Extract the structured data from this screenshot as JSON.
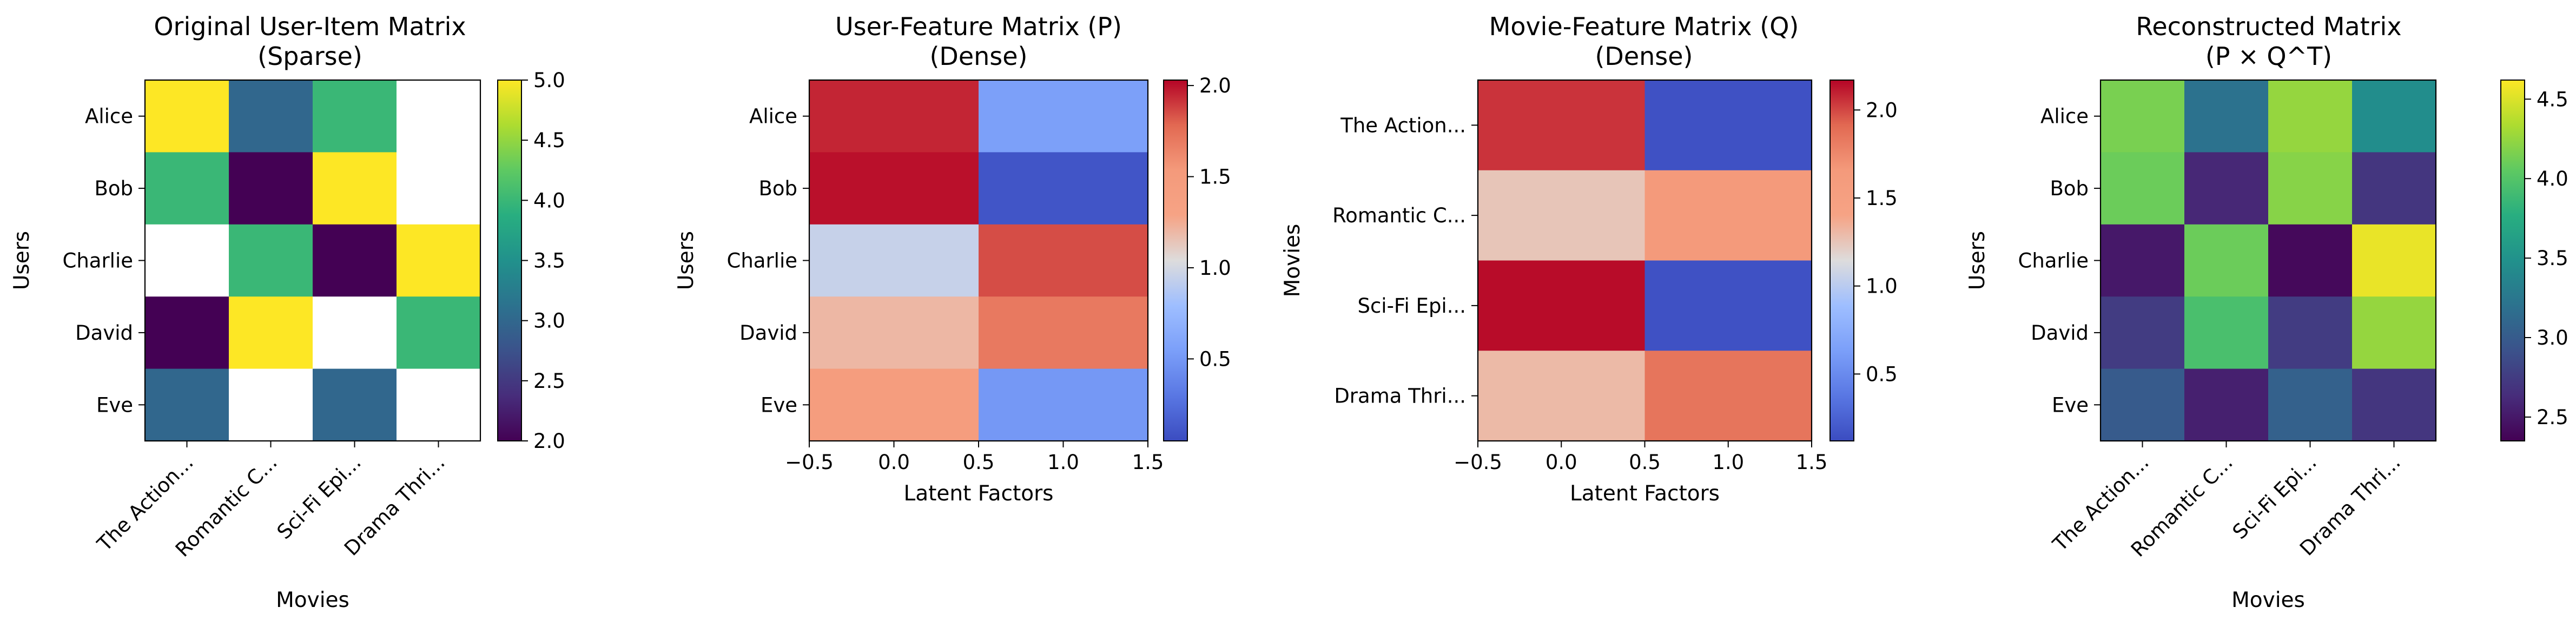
{
  "chart_data": [
    {
      "type": "heatmap",
      "title": [
        "Original User-Item Matrix",
        "(Sparse)"
      ],
      "xlabel": "Movies",
      "ylabel": "Users",
      "rows": [
        "Alice",
        "Bob",
        "Charlie",
        "David",
        "Eve"
      ],
      "cols": [
        "The Action...",
        "Romantic C...",
        "Sci-Fi Epi...",
        "Drama Thri..."
      ],
      "values": [
        [
          5,
          3,
          4,
          null
        ],
        [
          4,
          2,
          5,
          null
        ],
        [
          null,
          4,
          2,
          5
        ],
        [
          2,
          5,
          null,
          4
        ],
        [
          3,
          null,
          3,
          null
        ]
      ],
      "colormap": "viridis",
      "vmin": 2.0,
      "vmax": 5.0,
      "colorbar_ticks": [
        2.0,
        2.5,
        3.0,
        3.5,
        4.0,
        4.5,
        5.0
      ],
      "colorbar_tick_labels": [
        "2.0",
        "2.5",
        "3.0",
        "3.5",
        "4.0",
        "4.5",
        "5.0"
      ]
    },
    {
      "type": "heatmap",
      "title": [
        "User-Feature Matrix (P)",
        "(Dense)"
      ],
      "xlabel": "Latent Factors",
      "ylabel": "Users",
      "rows": [
        "Alice",
        "Bob",
        "Charlie",
        "David",
        "Eve"
      ],
      "x_ticks": [
        -0.5,
        0.0,
        0.5,
        1.0,
        1.5
      ],
      "x_tick_labels": [
        "−0.5",
        "0.0",
        "0.5",
        "1.0",
        "1.5"
      ],
      "values": [
        [
          1.95,
          0.55
        ],
        [
          2.0,
          0.1
        ],
        [
          0.95,
          1.85
        ],
        [
          1.2,
          1.7
        ],
        [
          1.45,
          0.5
        ]
      ],
      "colormap": "coolwarm",
      "vmin": 0.05,
      "vmax": 2.03,
      "colorbar_ticks": [
        0.5,
        1.0,
        1.5,
        2.0
      ],
      "colorbar_tick_labels": [
        "0.5",
        "1.0",
        "1.5",
        "2.0"
      ]
    },
    {
      "type": "heatmap",
      "title": [
        "Movie-Feature Matrix (Q)",
        "(Dense)"
      ],
      "xlabel": "Latent Factors",
      "ylabel": "Movies",
      "rows": [
        "The Action...",
        "Romantic C...",
        "Sci-Fi Epi...",
        "Drama Thri..."
      ],
      "x_ticks": [
        -0.5,
        0.0,
        0.5,
        1.0,
        1.5
      ],
      "x_tick_labels": [
        "−0.5",
        "0.0",
        "0.5",
        "1.0",
        "1.5"
      ],
      "values": [
        [
          2.05,
          0.15
        ],
        [
          1.25,
          1.65
        ],
        [
          2.15,
          0.15
        ],
        [
          1.3,
          1.85
        ]
      ],
      "colormap": "coolwarm",
      "vmin": 0.12,
      "vmax": 2.17,
      "colorbar_ticks": [
        0.5,
        1.0,
        1.5,
        2.0
      ],
      "colorbar_tick_labels": [
        "0.5",
        "1.0",
        "1.5",
        "2.0"
      ]
    },
    {
      "type": "heatmap",
      "title": [
        "Reconstructed Matrix",
        "(P × Q^T)"
      ],
      "xlabel": "Movies",
      "ylabel": "Users",
      "rows": [
        "Alice",
        "Bob",
        "Charlie",
        "David",
        "Eve"
      ],
      "cols": [
        "The Action...",
        "Romantic C...",
        "Sci-Fi Epi...",
        "Drama Thri..."
      ],
      "values": [
        [
          4.15,
          3.2,
          4.25,
          3.45
        ],
        [
          4.1,
          2.6,
          4.2,
          2.7
        ],
        [
          2.5,
          4.1,
          2.4,
          4.55
        ],
        [
          2.75,
          3.95,
          2.75,
          4.25
        ],
        [
          3.0,
          2.55,
          3.05,
          2.7
        ]
      ],
      "colormap": "viridis",
      "vmin": 2.35,
      "vmax": 4.62,
      "colorbar_ticks": [
        2.5,
        3.0,
        3.5,
        4.0,
        4.5
      ],
      "colorbar_tick_labels": [
        "2.5",
        "3.0",
        "3.5",
        "4.0",
        "4.5"
      ]
    }
  ]
}
